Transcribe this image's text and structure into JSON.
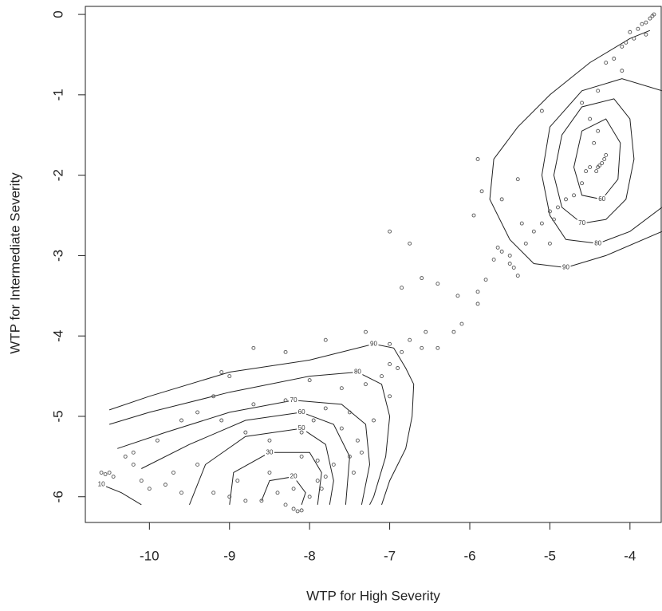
{
  "chart_data": {
    "type": "scatter",
    "x_label": "WTP for High Severity",
    "y_label": "WTP for Intermediate Severity",
    "xlim": [
      -10.8,
      -3.6
    ],
    "ylim": [
      0.1,
      -6.32
    ],
    "xticks": [
      -10,
      -9,
      -8,
      -7,
      -6,
      -5,
      -4
    ],
    "yticks": [
      0,
      -1,
      -2,
      -3,
      -4,
      -5,
      -6
    ],
    "point_color": "#555555",
    "line_color": "#222222",
    "x": [
      -3.7,
      -3.72,
      -3.75,
      -3.8,
      -3.85,
      -3.9,
      -3.8,
      -3.95,
      -4.0,
      -4.05,
      -4.1,
      -4.2,
      -4.3,
      -4.1,
      -4.4,
      -4.6,
      -4.5,
      -4.4,
      -4.45,
      -4.3,
      -4.32,
      -4.35,
      -4.38,
      -4.4,
      -4.42,
      -4.5,
      -4.55,
      -4.6,
      -4.7,
      -4.8,
      -4.9,
      -5.0,
      -4.95,
      -5.1,
      -5.2,
      -5.0,
      -5.3,
      -5.35,
      -5.5,
      -5.5,
      -5.6,
      -5.65,
      -5.7,
      -5.4,
      -5.45,
      -5.8,
      -5.9,
      -5.9,
      -5.95,
      -5.9,
      -5.85,
      -5.6,
      -5.4,
      -5.1,
      -7.0,
      -6.75,
      -6.85,
      -6.6,
      -6.4,
      -6.15,
      -6.1,
      -6.2,
      -6.4,
      -6.55,
      -6.6,
      -6.75,
      -6.85,
      -7.0,
      -7.3,
      -7.8,
      -8.3,
      -8.7,
      -9.1,
      -9.0,
      -10.5,
      -10.55,
      -10.6,
      -10.45,
      -10.3,
      -10.2,
      -10.1,
      -10.0,
      -9.8,
      -9.7,
      -9.6,
      -9.4,
      -9.2,
      -9.0,
      -8.9,
      -8.8,
      -8.6,
      -8.5,
      -8.4,
      -8.3,
      -8.2,
      -8.15,
      -8.1,
      -8.2,
      -8.0,
      -7.9,
      -7.8,
      -7.85,
      -7.7,
      -7.9,
      -8.1,
      -8.5,
      -8.8,
      -9.1,
      -9.4,
      -9.6,
      -9.2,
      -8.7,
      -8.3,
      -7.8,
      -7.5,
      -7.6,
      -7.4,
      -7.5,
      -7.2,
      -7.0,
      -7.3,
      -7.1,
      -7.0,
      -6.9,
      -7.6,
      -8.0,
      -8.1,
      -7.95,
      -7.35,
      -7.45,
      -9.9,
      -10.2
    ],
    "values": [
      0,
      -0.02,
      -0.05,
      -0.1,
      -0.12,
      -0.18,
      -0.25,
      -0.3,
      -0.22,
      -0.35,
      -0.4,
      -0.55,
      -0.6,
      -0.7,
      -0.95,
      -1.1,
      -1.3,
      -1.45,
      -1.6,
      -1.75,
      -1.8,
      -1.85,
      -1.88,
      -1.9,
      -1.95,
      -1.9,
      -1.95,
      -2.1,
      -2.25,
      -2.3,
      -2.4,
      -2.45,
      -2.55,
      -2.6,
      -2.7,
      -2.85,
      -2.85,
      -2.6,
      -3.0,
      -3.1,
      -2.95,
      -2.9,
      -3.05,
      -3.25,
      -3.15,
      -3.3,
      -3.45,
      -3.6,
      -2.5,
      -1.8,
      -2.2,
      -2.3,
      -2.05,
      -1.2,
      -2.7,
      -2.85,
      -3.4,
      -3.28,
      -3.35,
      -3.5,
      -3.85,
      -3.95,
      -4.15,
      -3.95,
      -4.15,
      -4.05,
      -4.2,
      -4.1,
      -3.95,
      -4.05,
      -4.2,
      -4.15,
      -4.45,
      -4.5,
      -5.7,
      -5.72,
      -5.7,
      -5.75,
      -5.5,
      -5.6,
      -5.8,
      -5.9,
      -5.85,
      -5.7,
      -5.95,
      -5.6,
      -5.95,
      -6.0,
      -5.8,
      -6.05,
      -6.05,
      -5.7,
      -5.95,
      -6.1,
      -6.15,
      -6.18,
      -6.17,
      -5.9,
      -6.0,
      -5.8,
      -5.75,
      -5.9,
      -5.6,
      -5.55,
      -5.5,
      -5.3,
      -5.2,
      -5.05,
      -4.95,
      -5.05,
      -4.75,
      -4.85,
      -4.8,
      -4.9,
      -4.95,
      -5.15,
      -5.3,
      -5.5,
      -5.05,
      -4.75,
      -4.6,
      -4.5,
      -4.35,
      -4.4,
      -4.65,
      -4.55,
      -5.2,
      -5.05,
      -5.45,
      -5.7,
      -5.3,
      -5.45
    ],
    "contours": [
      {
        "level": 90,
        "closed": false,
        "x": [
          -3.75,
          -4.0,
          -4.5,
          -5.0,
          -5.4,
          -5.7,
          -5.75,
          -5.5,
          -5.2,
          -4.8,
          -4.3,
          -3.6
        ],
        "y": [
          -0.2,
          -0.3,
          -0.6,
          -1.0,
          -1.4,
          -1.8,
          -2.3,
          -2.8,
          -3.1,
          -3.15,
          -3.0,
          -2.7
        ]
      },
      {
        "level": 80,
        "closed": false,
        "x": [
          -3.6,
          -4.1,
          -4.6,
          -5.0,
          -5.1,
          -5.0,
          -4.8,
          -4.4,
          -4.0,
          -3.6
        ],
        "y": [
          -0.95,
          -0.8,
          -0.95,
          -1.4,
          -2.0,
          -2.5,
          -2.8,
          -2.85,
          -2.7,
          -2.4
        ]
      },
      {
        "level": 70,
        "closed": true,
        "x": [
          -4.2,
          -4.6,
          -4.85,
          -4.95,
          -4.85,
          -4.6,
          -4.3,
          -4.05,
          -3.95,
          -4.0
        ],
        "y": [
          -1.05,
          -1.15,
          -1.5,
          -2.0,
          -2.4,
          -2.6,
          -2.55,
          -2.3,
          -1.8,
          -1.3
        ]
      },
      {
        "level": 60,
        "closed": true,
        "x": [
          -4.3,
          -4.6,
          -4.7,
          -4.6,
          -4.35,
          -4.15,
          -4.12
        ],
        "y": [
          -1.3,
          -1.45,
          -1.9,
          -2.25,
          -2.3,
          -2.05,
          -1.6
        ]
      },
      {
        "level": 90,
        "closed": false,
        "x": [
          -10.5,
          -10.0,
          -9.0,
          -8.0,
          -7.2,
          -6.95,
          -6.8,
          -6.7,
          -6.72,
          -6.8,
          -7.0,
          -7.1
        ],
        "y": [
          -4.92,
          -4.75,
          -4.45,
          -4.3,
          -4.1,
          -4.15,
          -4.4,
          -4.6,
          -5.0,
          -5.4,
          -5.8,
          -6.1
        ]
      },
      {
        "level": 80,
        "closed": false,
        "x": [
          -10.5,
          -10.0,
          -9.0,
          -8.0,
          -7.4,
          -7.1,
          -7.0,
          -7.05,
          -7.2,
          -7.25
        ],
        "y": [
          -5.1,
          -4.95,
          -4.7,
          -4.5,
          -4.45,
          -4.6,
          -5.0,
          -5.5,
          -6.0,
          -6.1
        ]
      },
      {
        "level": 70,
        "closed": false,
        "x": [
          -10.4,
          -9.8,
          -9.0,
          -8.2,
          -7.6,
          -7.3,
          -7.25,
          -7.35
        ],
        "y": [
          -5.4,
          -5.2,
          -4.95,
          -4.8,
          -4.85,
          -5.1,
          -5.6,
          -6.1
        ]
      },
      {
        "level": 60,
        "closed": false,
        "x": [
          -10.1,
          -9.5,
          -8.8,
          -8.1,
          -7.7,
          -7.5,
          -7.55
        ],
        "y": [
          -5.65,
          -5.35,
          -5.05,
          -4.95,
          -5.1,
          -5.5,
          -6.1
        ]
      },
      {
        "level": 50,
        "closed": false,
        "x": [
          -9.5,
          -9.3,
          -8.8,
          -8.1,
          -7.8,
          -7.7,
          -7.75
        ],
        "y": [
          -6.1,
          -5.6,
          -5.25,
          -5.15,
          -5.35,
          -5.8,
          -6.1
        ]
      },
      {
        "level": 30,
        "closed": false,
        "x": [
          -9.0,
          -8.95,
          -8.5,
          -8.0,
          -7.85,
          -7.9
        ],
        "y": [
          -6.1,
          -5.7,
          -5.45,
          -5.45,
          -5.7,
          -6.1
        ]
      },
      {
        "level": 20,
        "closed": false,
        "x": [
          -8.6,
          -8.5,
          -8.2,
          -8.05,
          -8.1
        ],
        "y": [
          -6.05,
          -5.8,
          -5.75,
          -5.95,
          -6.1
        ]
      },
      {
        "level": 10,
        "closed": false,
        "x": [
          -10.6,
          -10.35,
          -10.1
        ],
        "y": [
          -5.85,
          -5.95,
          -6.1
        ]
      }
    ]
  }
}
